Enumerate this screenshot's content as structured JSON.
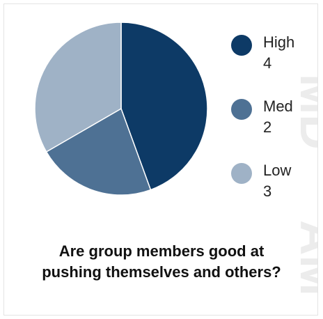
{
  "chart_data": {
    "type": "pie",
    "categories": [
      "High",
      "Med",
      "Low"
    ],
    "values": [
      4,
      2,
      3
    ],
    "colors": [
      "#0d3a66",
      "#4e7194",
      "#9fb2c6"
    ],
    "legend": "right",
    "title_lines": [
      "Are group members good at",
      "pushing themselves and others?"
    ]
  },
  "legend_counts": [
    "4",
    "2",
    "3"
  ]
}
